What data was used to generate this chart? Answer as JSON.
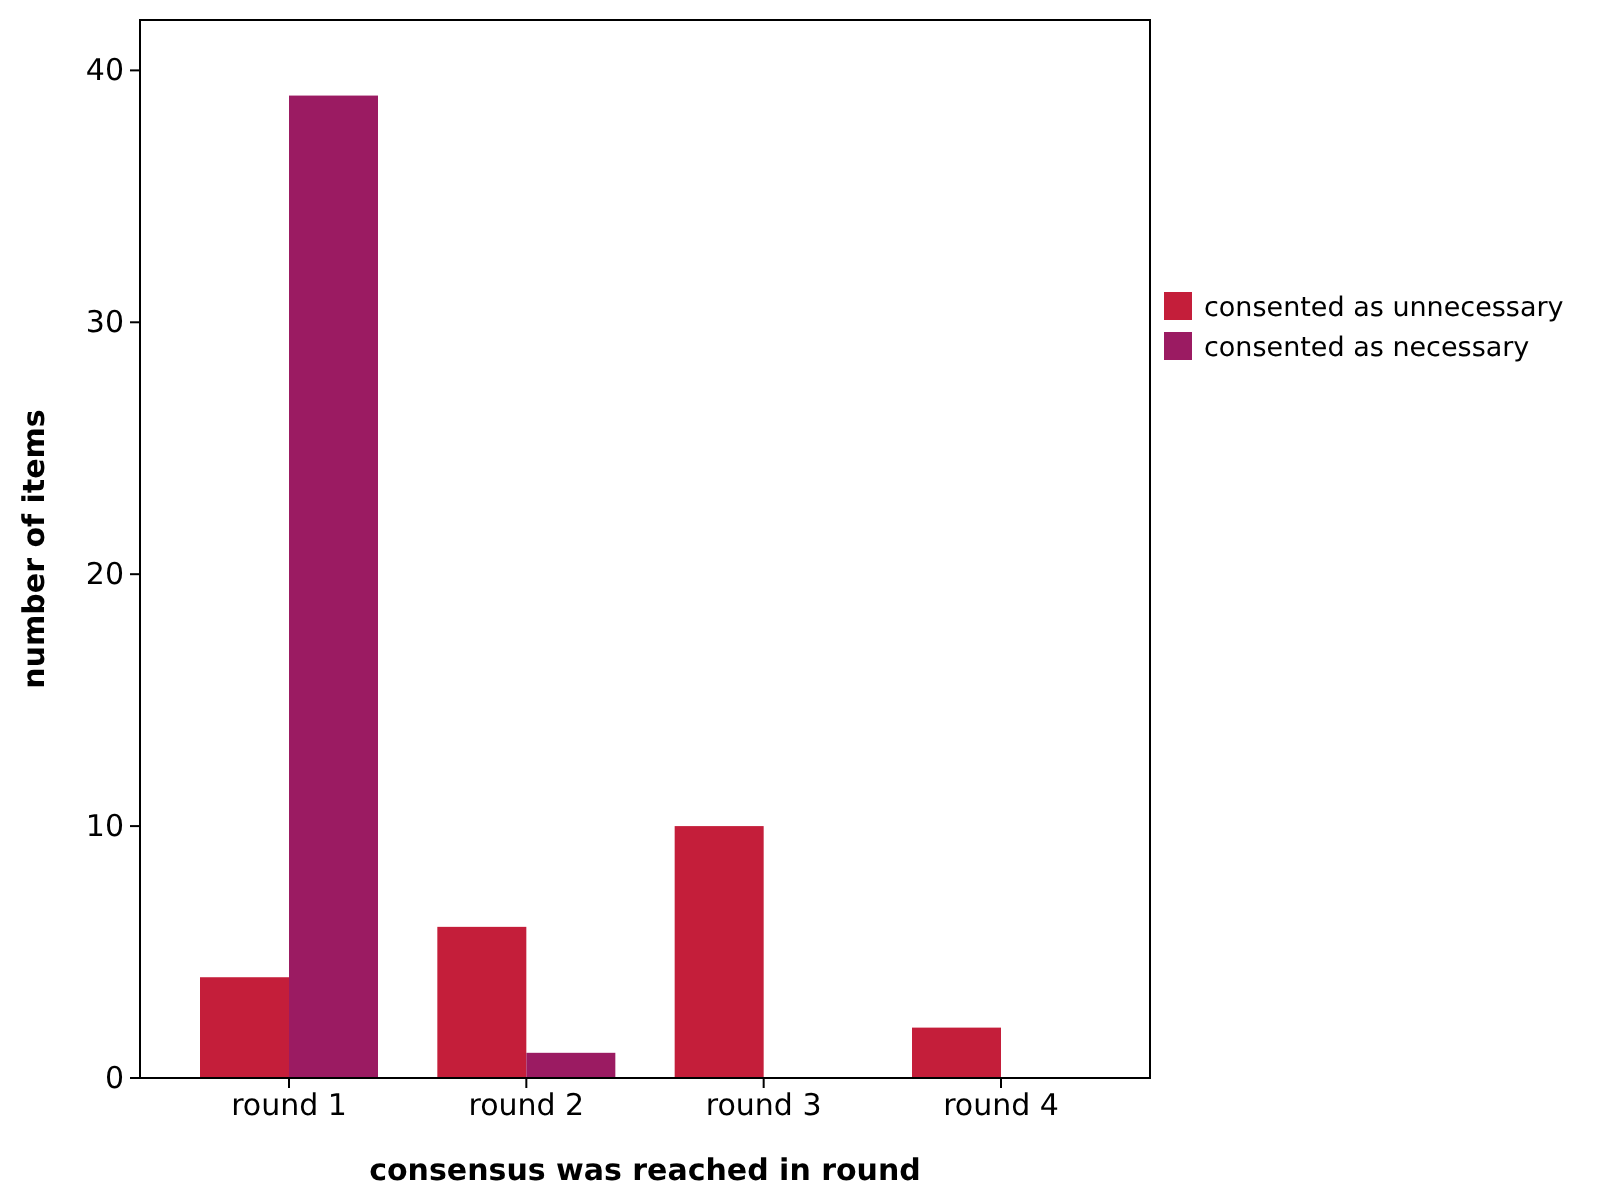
{
  "chart_data": {
    "type": "bar",
    "xlabel": "consensus was reached in round",
    "ylabel": "number of items",
    "categories": [
      "round 1",
      "round 2",
      "round 3",
      "round 4"
    ],
    "series": [
      {
        "name": "consented as unnecessary",
        "color": "#c41e3a",
        "values": [
          4,
          6,
          10,
          2
        ]
      },
      {
        "name": "consented as necessary",
        "color": "#9b1b62",
        "values": [
          39,
          1,
          0,
          0
        ]
      }
    ],
    "ylim": [
      0,
      42
    ],
    "yticks": [
      0,
      10,
      20,
      30,
      40
    ],
    "grid": false,
    "legend": "right"
  }
}
